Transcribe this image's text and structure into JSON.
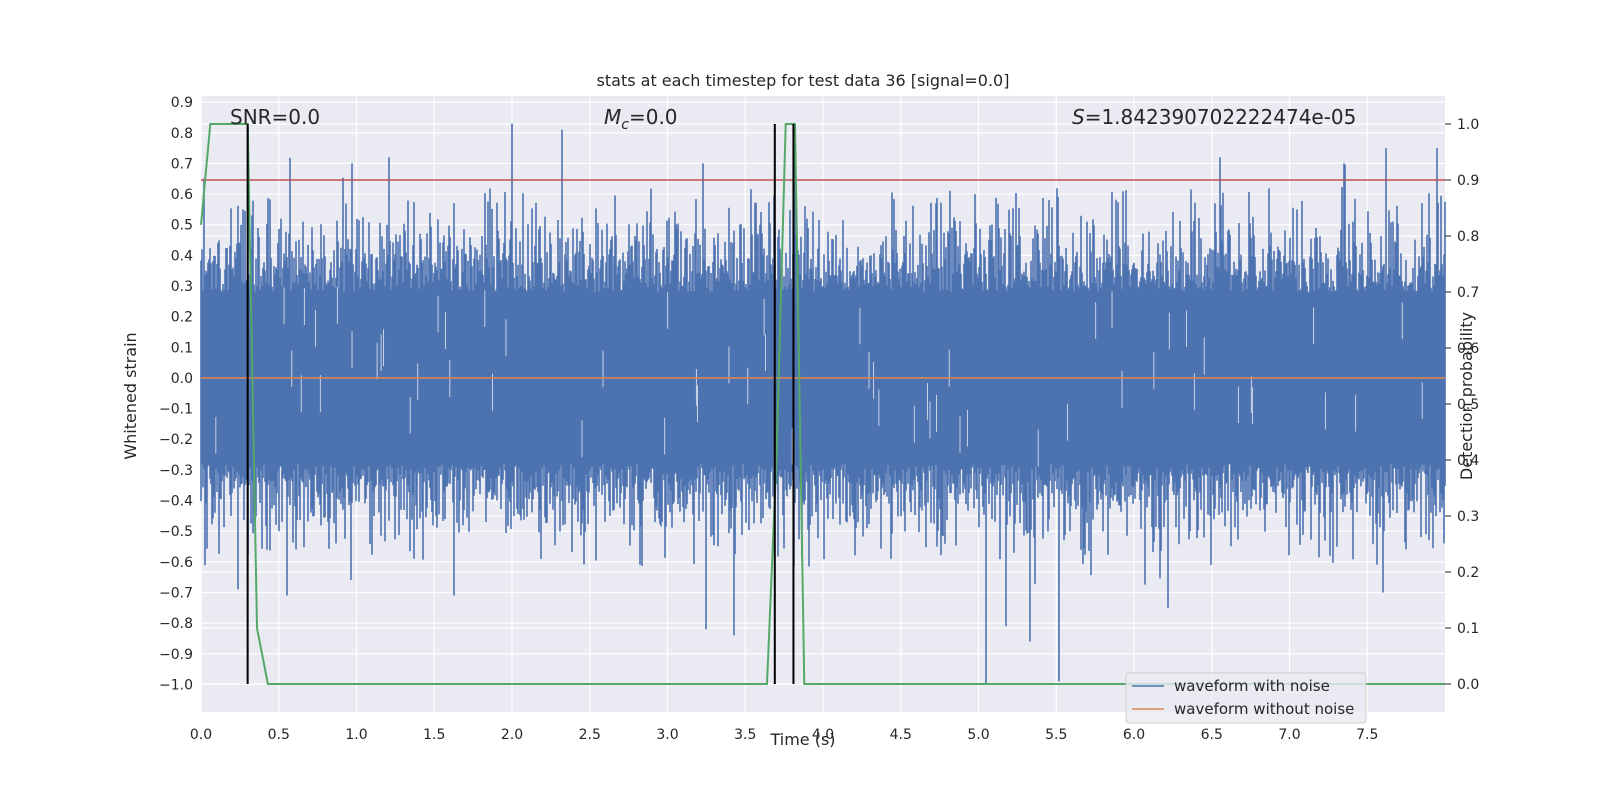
{
  "chart_data": {
    "type": "line",
    "title": "stats at each timestep for test data 36 [signal=0.0]",
    "xlabel": "Time (s)",
    "ylabel": "Whitened strain",
    "y2label": "Detection probability",
    "xlim": [
      0.0,
      8.0
    ],
    "ylim": [
      -1.09,
      0.92
    ],
    "y2lim": [
      -0.05,
      1.05
    ],
    "x_ticks": [
      0.0,
      0.5,
      1.0,
      1.5,
      2.0,
      2.5,
      3.0,
      3.5,
      4.0,
      4.5,
      5.0,
      5.5,
      6.0,
      6.5,
      7.0,
      7.5
    ],
    "x_tick_labels": [
      "0.0",
      "0.5",
      "1.0",
      "1.5",
      "2.0",
      "2.5",
      "3.0",
      "3.5",
      "4.0",
      "4.5",
      "5.0",
      "5.5",
      "6.0",
      "6.5",
      "7.0",
      "7.5"
    ],
    "y_ticks": [
      0.9,
      0.8,
      0.7,
      0.6,
      0.5,
      0.4,
      0.3,
      0.2,
      0.1,
      0.0,
      -0.1,
      -0.2,
      -0.3,
      -0.4,
      -0.5,
      -0.6,
      -0.7,
      -0.8,
      -0.9,
      -1.0
    ],
    "y_tick_labels": [
      "0.9",
      "0.8",
      "0.7",
      "0.6",
      "0.5",
      "0.4",
      "0.3",
      "0.2",
      "0.1",
      "0.0",
      "−0.1",
      "−0.2",
      "−0.3",
      "−0.4",
      "−0.5",
      "−0.6",
      "−0.7",
      "−0.8",
      "−0.9",
      "−1.0"
    ],
    "y2_ticks": [
      1.0,
      0.9,
      0.8,
      0.7,
      0.6,
      0.5,
      0.4,
      0.3,
      0.2,
      0.1,
      0.0
    ],
    "y2_tick_labels": [
      "1.0",
      "0.9",
      "0.8",
      "0.7",
      "0.6",
      "0.5",
      "0.4",
      "0.3",
      "0.2",
      "0.1",
      "0.0"
    ],
    "grid": true,
    "legend_position": "bottom-right",
    "annotations": {
      "snr": "SNR=0.0",
      "mc_symbol": "M",
      "mc_sub": "c",
      "mc_value": "=0.0",
      "s_symbol": "S",
      "s_value": "=1.842390702222474e-05"
    },
    "series": [
      {
        "name": "waveform with noise",
        "color": "#4c72b0",
        "axis": "left",
        "description_ref": "dense noise between about -0.5 and 0.5 with spikes",
        "spikes": [
          {
            "x": 0.02,
            "y": 0.65
          },
          {
            "x": 0.27,
            "y": 0.55
          },
          {
            "x": 0.3,
            "y": 0.82
          },
          {
            "x": 0.97,
            "y": 0.7
          },
          {
            "x": 1.21,
            "y": 0.72
          },
          {
            "x": 2.0,
            "y": 0.83
          },
          {
            "x": 2.32,
            "y": 0.81
          },
          {
            "x": 3.23,
            "y": 0.7
          },
          {
            "x": 3.82,
            "y": 0.82
          },
          {
            "x": 4.98,
            "y": 0.6
          },
          {
            "x": 5.52,
            "y": 0.75
          },
          {
            "x": 6.55,
            "y": 0.72
          },
          {
            "x": 7.35,
            "y": 0.7
          },
          {
            "x": 7.62,
            "y": 0.75
          },
          {
            "x": 7.95,
            "y": 0.75
          },
          {
            "x": 0.24,
            "y": -0.69
          },
          {
            "x": 0.55,
            "y": -0.71
          },
          {
            "x": 1.63,
            "y": -0.71
          },
          {
            "x": 3.25,
            "y": -0.82
          },
          {
            "x": 3.43,
            "y": -0.84
          },
          {
            "x": 5.05,
            "y": -1.0
          },
          {
            "x": 5.18,
            "y": -0.81
          },
          {
            "x": 5.33,
            "y": -0.86
          },
          {
            "x": 5.52,
            "y": -0.99
          },
          {
            "x": 6.22,
            "y": -0.75
          },
          {
            "x": 7.6,
            "y": -0.7
          }
        ]
      },
      {
        "name": "waveform without noise",
        "color": "#dd8452",
        "axis": "left",
        "x": [
          0.0,
          8.0
        ],
        "y": [
          0.0,
          0.0
        ]
      },
      {
        "color": "#55a868",
        "axis": "right",
        "x": [
          0.0,
          0.06,
          0.12,
          0.24,
          0.3,
          0.36,
          0.43,
          3.64,
          3.7,
          3.76,
          3.82,
          3.88,
          3.94,
          8.0
        ],
        "y": [
          0.82,
          1.0,
          1.0,
          1.0,
          1.0,
          0.1,
          0.0,
          0.0,
          0.4,
          1.0,
          1.0,
          0.0,
          0.0,
          0.0
        ]
      }
    ],
    "threshold_line": {
      "color": "#c44e52",
      "axis": "right",
      "y": 0.9
    },
    "vertical_lines": {
      "color": "#000000",
      "x": [
        0.3,
        3.69,
        3.81
      ],
      "y_top": 1.0,
      "y_bottom": 0.0
    }
  }
}
